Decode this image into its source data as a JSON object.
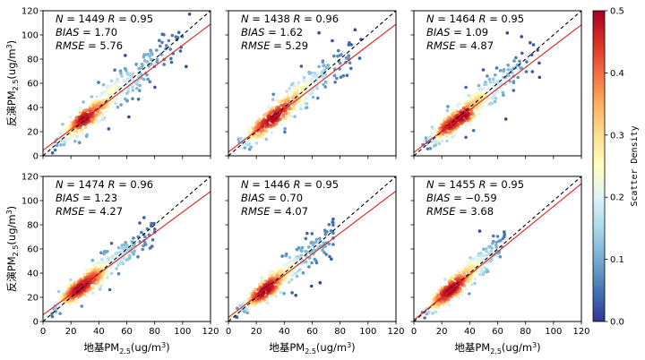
{
  "chart_data": {
    "type": "scatter",
    "layout": {
      "rows": 2,
      "cols": 3
    },
    "xlim": [
      0,
      120
    ],
    "ylim": [
      0,
      120
    ],
    "ticks": [
      0,
      20,
      40,
      60,
      80,
      100,
      120
    ],
    "xlabel": {
      "main": "地基PM",
      "sub": "2.5",
      "unit": "(ug/m",
      "sup": "3",
      "close": ")"
    },
    "ylabel": {
      "main": "反演PM",
      "sub": "2.5",
      "unit": "(ug/m",
      "sup": "3",
      "close": ")"
    },
    "reference_line": {
      "style": "dashed",
      "color": "#000000",
      "slope": 1,
      "intercept": 0
    },
    "colorbar": {
      "label": "Scatter Density",
      "min": 0.0,
      "max": 0.5,
      "ticks": [
        "0.0",
        "0.1",
        "0.2",
        "0.3",
        "0.4",
        "0.5"
      ],
      "colormap": "RdYlBu_r",
      "colors": [
        "#313695",
        "#4575b4",
        "#74add1",
        "#abd9e9",
        "#e0f3f8",
        "#ffffbf",
        "#fee090",
        "#fdae61",
        "#f46d43",
        "#d73027",
        "#a50026"
      ]
    },
    "panels": [
      {
        "N": "1449",
        "R": "0.95",
        "BIAS": "1.70",
        "RMSE": "5.76",
        "fit": {
          "slope": 0.87,
          "intercept": 4.5
        },
        "spread": 0.16,
        "xmax": 105
      },
      {
        "N": "1438",
        "R": "0.96",
        "BIAS": "1.62",
        "RMSE": "5.29",
        "fit": {
          "slope": 0.88,
          "intercept": 3.2
        },
        "spread": 0.14,
        "xmax": 95
      },
      {
        "N": "1464",
        "R": "0.95",
        "BIAS": "1.09",
        "RMSE": "4.87",
        "fit": {
          "slope": 0.88,
          "intercept": 2.8
        },
        "spread": 0.14,
        "xmax": 90
      },
      {
        "N": "1474",
        "R": "0.96",
        "BIAS": "1.23",
        "RMSE": "4.27",
        "fit": {
          "slope": 0.85,
          "intercept": 5.5
        },
        "spread": 0.13,
        "xmax": 80
      },
      {
        "N": "1446",
        "R": "0.95",
        "BIAS": "0.70",
        "RMSE": "4.07",
        "fit": {
          "slope": 0.87,
          "intercept": 3.5
        },
        "spread": 0.13,
        "xmax": 75
      },
      {
        "N": "1455",
        "R": "0.95",
        "BIAS": "−0.59",
        "RMSE": "3.68",
        "fit": {
          "slope": 0.94,
          "intercept": 1.2
        },
        "spread": 0.13,
        "xmax": 65
      }
    ]
  }
}
